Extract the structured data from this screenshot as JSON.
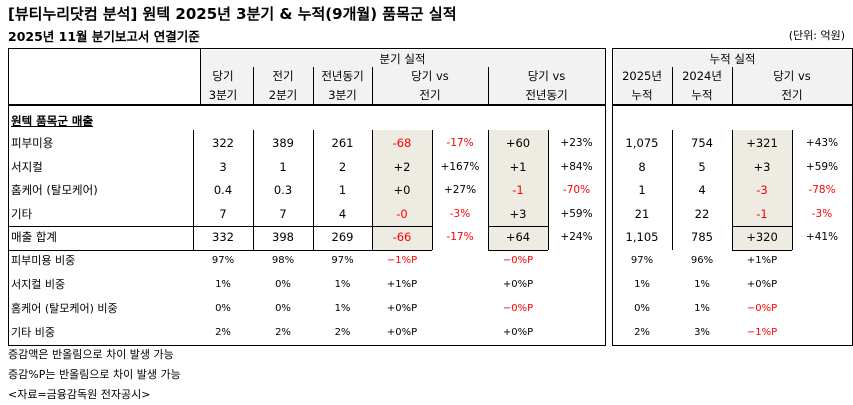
{
  "title": "[뷰티누리닷컴 분석] 원텍 2025년 3분기 & 누적(9개월) 품목군 실적",
  "subtitle": "2025년 11월 분기보고서 연결기준",
  "unit": "(단위: 억원)",
  "quarterly_header": "분기 실적",
  "cumulative_header": "누적 실적",
  "columns": [
    [
      "당기",
      "3분기"
    ],
    [
      "전기",
      "2분기"
    ],
    [
      "전년동기",
      "3분기"
    ],
    [
      "당기 vs",
      "전기"
    ],
    [
      "당기 vs",
      "전년동기"
    ],
    [
      "2025년",
      "누적"
    ],
    [
      "2024년",
      "누적"
    ],
    [
      "당기 vs",
      "전기"
    ]
  ],
  "section_title": "원텍 품목군 매출",
  "rows": [
    {
      "label": "피부미용",
      "v": [
        "322",
        "389",
        "261",
        "-68",
        "-17%",
        "+60",
        "+23%",
        "1,075",
        "754",
        "+321",
        "+43%"
      ]
    },
    {
      "label": "서지컬",
      "v": [
        "3",
        "1",
        "2",
        "+2",
        "+167%",
        "+1",
        "+84%",
        "8",
        "5",
        "+3",
        "+59%"
      ]
    },
    {
      "label": "홈케어 (탈모케어)",
      "v": [
        "0.4",
        "0.3",
        "1",
        "+0",
        "+27%",
        "-1",
        "-70%",
        "1",
        "4",
        "-3",
        "-78%"
      ]
    },
    {
      "label": "기타",
      "v": [
        "7",
        "7",
        "4",
        "-0",
        "-3%",
        "+3",
        "+59%",
        "21",
        "22",
        "-1",
        "-3%"
      ]
    },
    {
      "label": "매출 합계",
      "v": [
        "332",
        "398",
        "269",
        "-66",
        "-17%",
        "+64",
        "+24%",
        "1,105",
        "785",
        "+320",
        "+41%"
      ]
    }
  ],
  "ratio_rows": [
    {
      "label": "피부미용 비중",
      "v": [
        "97%",
        "98%",
        "97%",
        "−1%P",
        "−0%P",
        "97%",
        "96%",
        "+1%P"
      ]
    },
    {
      "label": "서지컬 비중",
      "v": [
        "1%",
        "0%",
        "1%",
        "+1%P",
        "+0%P",
        "1%",
        "1%",
        "+0%P"
      ]
    },
    {
      "label": "홈케어 (탈모케어) 비중",
      "v": [
        "0%",
        "0%",
        "1%",
        "+0%P",
        "−0%P",
        "0%",
        "1%",
        "−0%P"
      ]
    },
    {
      "label": "기타 비중",
      "v": [
        "2%",
        "2%",
        "2%",
        "+0%P",
        "+0%P",
        "2%",
        "3%",
        "−1%P"
      ]
    }
  ],
  "notes": [
    "증감액은 반올림으로 차이 발생 가능",
    "증감%P는 반올림으로 차이 발생 가능",
    "<자료=금융감독원 전자공시>"
  ],
  "colors": {
    "negative": "#ff0000",
    "shade": "#eeebe2",
    "header": "#f2f2f2"
  }
}
